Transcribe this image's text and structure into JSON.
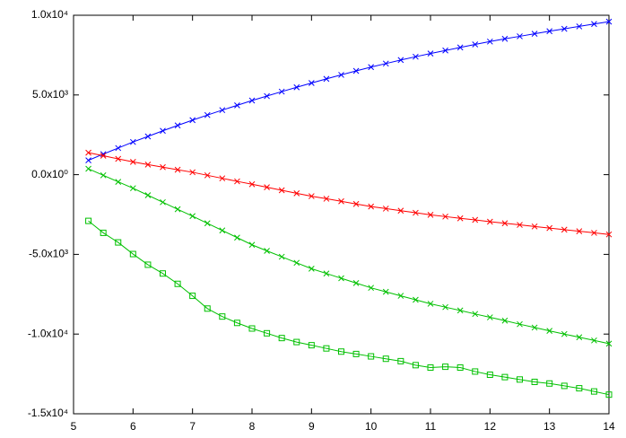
{
  "chart_data": {
    "type": "line",
    "x": [
      5.25,
      5.5,
      5.75,
      6,
      6.25,
      6.5,
      6.75,
      7,
      7.25,
      7.5,
      7.75,
      8,
      8.25,
      8.5,
      8.75,
      9,
      9.25,
      9.5,
      9.75,
      10,
      10.25,
      10.5,
      10.75,
      11,
      11.25,
      11.5,
      11.75,
      12,
      12.25,
      12.5,
      12.75,
      13,
      13.25,
      13.5,
      13.75,
      14
    ],
    "series": [
      {
        "color": "#0000ff",
        "marker": "x",
        "values": [
          900,
          1290,
          1670,
          2050,
          2400,
          2750,
          3090,
          3420,
          3740,
          4050,
          4350,
          4650,
          4930,
          5210,
          5480,
          5750,
          6010,
          6260,
          6510,
          6750,
          6970,
          7190,
          7400,
          7600,
          7790,
          7980,
          8170,
          8350,
          8520,
          8680,
          8840,
          9000,
          9150,
          9300,
          9450,
          9600
        ]
      },
      {
        "color": "#ff0000",
        "marker": "x",
        "values": [
          1380,
          1190,
          990,
          800,
          630,
          470,
          310,
          150,
          -40,
          -230,
          -420,
          -600,
          -790,
          -980,
          -1170,
          -1350,
          -1510,
          -1670,
          -1840,
          -2000,
          -2130,
          -2260,
          -2390,
          -2520,
          -2630,
          -2740,
          -2840,
          -2950,
          -3050,
          -3150,
          -3250,
          -3350,
          -3450,
          -3550,
          -3650,
          -3750
        ]
      },
      {
        "color": "#00c000",
        "marker": "x",
        "values": [
          370,
          -40,
          -450,
          -850,
          -1290,
          -1730,
          -2170,
          -2600,
          -3050,
          -3500,
          -3950,
          -4400,
          -4780,
          -5150,
          -5530,
          -5900,
          -6200,
          -6500,
          -6800,
          -7100,
          -7350,
          -7600,
          -7850,
          -8100,
          -8310,
          -8520,
          -8740,
          -8950,
          -9160,
          -9380,
          -9590,
          -9800,
          -10000,
          -10200,
          -10400,
          -10600
        ]
      },
      {
        "color": "#00c000",
        "marker": "square",
        "values": [
          -2900,
          -3650,
          -4250,
          -4980,
          -5650,
          -6200,
          -6850,
          -7600,
          -8400,
          -8900,
          -9300,
          -9650,
          -9950,
          -10250,
          -10500,
          -10700,
          -10900,
          -11100,
          -11250,
          -11400,
          -11550,
          -11700,
          -11950,
          -12100,
          -12050,
          -12100,
          -12350,
          -12550,
          -12700,
          -12850,
          -13000,
          -13100,
          -13250,
          -13400,
          -13600,
          -13800
        ]
      }
    ],
    "xlim": [
      5,
      14
    ],
    "xticks": [
      5,
      6,
      7,
      8,
      9,
      10,
      11,
      12,
      13,
      14
    ],
    "ylim": [
      -15000,
      10000
    ],
    "yticks": [
      {
        "value": -15000,
        "label": "-1.5x10⁴"
      },
      {
        "value": -10000,
        "label": "-1.0x10⁴"
      },
      {
        "value": -5000,
        "label": "-5.0x10³"
      },
      {
        "value": 0,
        "label": "0.0x10⁰"
      },
      {
        "value": 5000,
        "label": "5.0x10³"
      },
      {
        "value": 10000,
        "label": "1.0x10⁴"
      }
    ],
    "grid": false
  }
}
